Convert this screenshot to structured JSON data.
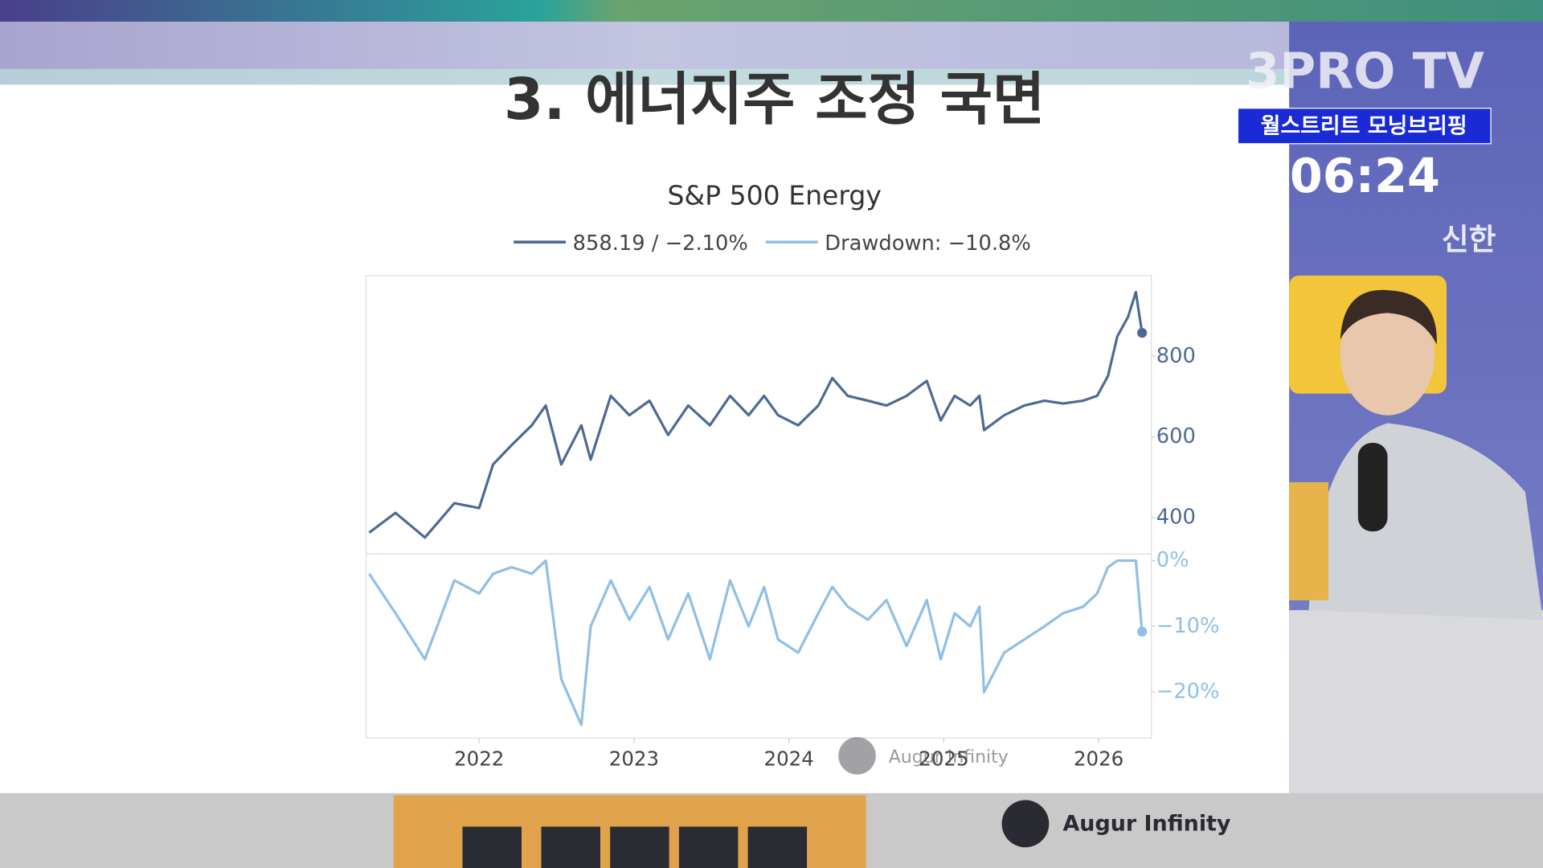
{
  "slide_title": "3. 에너지주 조정 국면",
  "watermark": "Augur Infinity",
  "footer_logo": "Augur Infinity",
  "broadcast": {
    "channel": "3PRO TV",
    "program": "월스트리트 모닝브리핑",
    "time": "06:24",
    "sponsor": "신한"
  },
  "chart_data": [
    {
      "type": "line",
      "title": "S&P 500 Energy",
      "x": [
        2021.29,
        2021.46,
        2021.65,
        2021.84,
        2022.0,
        2022.09,
        2022.21,
        2022.34,
        2022.43,
        2022.53,
        2022.66,
        2022.72,
        2022.85,
        2022.97,
        2023.1,
        2023.22,
        2023.35,
        2023.49,
        2023.62,
        2023.74,
        2023.84,
        2023.93,
        2024.06,
        2024.19,
        2024.28,
        2024.38,
        2024.51,
        2024.63,
        2024.76,
        2024.89,
        2024.98,
        2025.07,
        2025.17,
        2025.23,
        2025.26,
        2025.39,
        2025.52,
        2025.65,
        2025.77,
        2025.9,
        2025.99,
        2026.06,
        2026.12,
        2026.19,
        2026.24,
        2026.28
      ],
      "series": [
        {
          "name": "858.19 / −2.10%",
          "color": "#4d6a94",
          "values": [
            363,
            412,
            351,
            436,
            424,
            532,
            580,
            629,
            678,
            532,
            629,
            544,
            702,
            654,
            690,
            605,
            678,
            629,
            702,
            654,
            702,
            654,
            629,
            678,
            746,
            702,
            690,
            678,
            702,
            739,
            641,
            702,
            678,
            702,
            617,
            654,
            678,
            690,
            683,
            690,
            702,
            751,
            849,
            898,
            959,
            858
          ]
        }
      ],
      "xlim": [
        2021.27,
        2026.34
      ],
      "ylim": [
        310,
        1000
      ],
      "yticks": [
        400,
        600,
        800
      ]
    },
    {
      "type": "line",
      "x": [
        2021.29,
        2021.46,
        2021.65,
        2021.84,
        2022.0,
        2022.09,
        2022.21,
        2022.34,
        2022.43,
        2022.53,
        2022.66,
        2022.72,
        2022.85,
        2022.97,
        2023.1,
        2023.22,
        2023.35,
        2023.49,
        2023.62,
        2023.74,
        2023.84,
        2023.93,
        2024.06,
        2024.19,
        2024.28,
        2024.38,
        2024.51,
        2024.63,
        2024.76,
        2024.89,
        2024.98,
        2025.07,
        2025.17,
        2025.23,
        2025.26,
        2025.39,
        2025.52,
        2025.65,
        2025.77,
        2025.9,
        2025.99,
        2026.06,
        2026.12,
        2026.19,
        2026.24,
        2026.28
      ],
      "series": [
        {
          "name": "Drawdown: −10.8%",
          "color": "#8fbfe6",
          "values": [
            -2,
            -8,
            -15,
            -3,
            -5,
            -2,
            -1,
            -2,
            0,
            -18,
            -25,
            -10,
            -3,
            -9,
            -4,
            -12,
            -5,
            -15,
            -3,
            -10,
            -4,
            -12,
            -14,
            -8,
            -4,
            -7,
            -9,
            -6,
            -13,
            -6,
            -15,
            -8,
            -10,
            -7,
            -20,
            -14,
            -12,
            -10,
            -8,
            -7,
            -5,
            -1,
            0,
            0,
            0,
            -10.8
          ]
        }
      ],
      "xlim": [
        2021.27,
        2026.34
      ],
      "xticks": [
        2022,
        2023,
        2024,
        2025,
        2026
      ],
      "ylim": [
        -27,
        1
      ],
      "yticks": [
        {
          "value": 0,
          "label": "0%"
        },
        {
          "value": -10,
          "label": "−10%"
        },
        {
          "value": -20,
          "label": "−20%"
        }
      ]
    }
  ]
}
